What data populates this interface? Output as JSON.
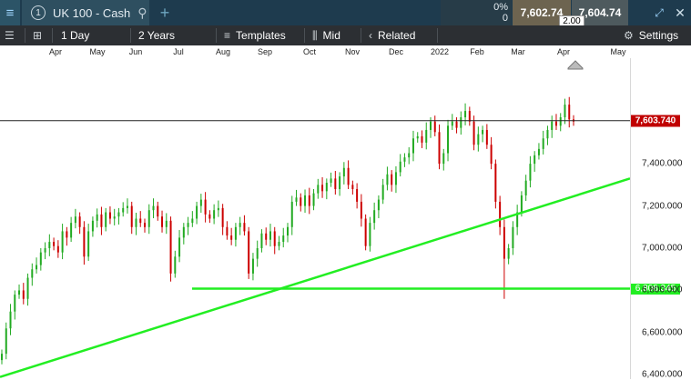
{
  "header": {
    "menu_icon": "menu-icon",
    "symbol_number": "1",
    "symbol": "UK 100 - Cash",
    "search_icon": "search-icon",
    "new_tab_icon": "plus-icon",
    "change_pct": "0%",
    "change_val": "0",
    "sell": "7,602.74",
    "buy": "7,604.74",
    "spread": "2.00",
    "window_icon": "window-icon",
    "close_icon": "close-icon"
  },
  "toolbar": {
    "list_icon": "list-icon",
    "grid_icon": "grid-icon",
    "interval": "1 Day",
    "range": "2 Years",
    "templates": "Templates",
    "price_mode": "Mid",
    "related": "Related",
    "settings": "Settings"
  },
  "time_axis": [
    "Apr",
    "May",
    "Jun",
    "Jul",
    "Aug",
    "Sep",
    "Oct",
    "Nov",
    "Dec",
    "2022",
    "Feb",
    "Mar",
    "Apr",
    "May"
  ],
  "chart_data": {
    "type": "candlestick",
    "title": "",
    "xlabel": "",
    "ylabel": "",
    "ylim": [
      6380,
      7900
    ],
    "yticks": [
      "6,400.000",
      "6,600.000",
      "6,800.000",
      "7,000.000",
      "7,200.000",
      "7,400.000"
    ],
    "current_price": "7,603.740",
    "current_price_value": 7603.74,
    "horizontal_line_label": "6,808.345",
    "horizontal_line_value": 6808.345,
    "trendline": {
      "start_price": 6390,
      "end_price": 7330
    },
    "up_color": "#22aa22",
    "down_color": "#cc0000",
    "closes": [
      6500,
      6620,
      6700,
      6780,
      6800,
      6760,
      6860,
      6900,
      6920,
      6980,
      7000,
      7030,
      7010,
      6980,
      7080,
      7050,
      7120,
      7150,
      7100,
      6960,
      7080,
      7130,
      7160,
      7100,
      7170,
      7140,
      7150,
      7170,
      7190,
      7200,
      7100,
      7140,
      7120,
      7100,
      7180,
      7200,
      7150,
      7100,
      7130,
      6880,
      6960,
      7050,
      7100,
      7120,
      7140,
      7200,
      7230,
      7160,
      7140,
      7180,
      7190,
      7100,
      7060,
      7040,
      7100,
      7120,
      7080,
      6880,
      6950,
      7000,
      7070,
      7040,
      7080,
      7010,
      7030,
      7060,
      7100,
      7220,
      7240,
      7200,
      7250,
      7200,
      7260,
      7300,
      7270,
      7310,
      7330,
      7280,
      7340,
      7380,
      7300,
      7280,
      7220,
      7140,
      7010,
      7120,
      7180,
      7230,
      7300,
      7350,
      7300,
      7360,
      7410,
      7430,
      7450,
      7520,
      7530,
      7500,
      7560,
      7600,
      7550,
      7400,
      7450,
      7580,
      7600,
      7570,
      7620,
      7650,
      7600,
      7490,
      7540,
      7560,
      7490,
      7400,
      7220,
      7100,
      6950,
      7000,
      7100,
      7170,
      7250,
      7320,
      7400,
      7440,
      7470,
      7520,
      7560,
      7600,
      7580,
      7620,
      7680,
      7610,
      7600
    ],
    "lows_extra": {
      "index": 116,
      "low": 6760
    }
  },
  "colors": {
    "header_bg": "#1e3b4e",
    "toolbar_bg": "#2c2f33",
    "price_tag": "#c00000",
    "trendline": "#22ee22",
    "sell_bg": "#6d6450",
    "buy_bg": "#4e5a5e"
  }
}
